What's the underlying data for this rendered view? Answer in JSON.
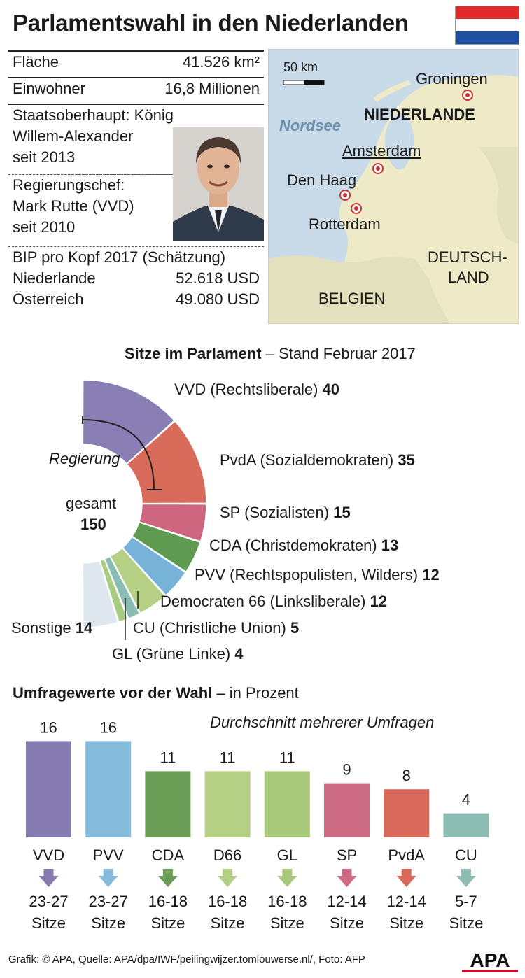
{
  "title": "Parlamentswahl in den Niederlanden",
  "flag_colors": [
    "#e22a2a",
    "#ffffff",
    "#1e4fa0"
  ],
  "facts": {
    "flaeche_label": "Fläche",
    "flaeche_value": "41.526 km²",
    "einwohner_label": "Einwohner",
    "einwohner_value": "16,8 Millionen",
    "staatsoberhaupt_1": "Staatsoberhaupt: König",
    "staatsoberhaupt_2": "Willem-Alexander",
    "staatsoberhaupt_3": "seit 2013",
    "regierungschef_1": "Regierungschef:",
    "regierungschef_2": "Mark Rutte (VVD)",
    "regierungschef_3": "seit 2010",
    "bip_label": "BIP pro Kopf 2017 (Schätzung)",
    "nl_label": "Niederlande",
    "nl_value": "52.618 USD",
    "at_label": "Österreich",
    "at_value": "49.080 USD"
  },
  "map": {
    "scale": "50 km",
    "sea": "Nordsee",
    "country": "NIEDERLANDE",
    "groningen": "Groningen",
    "amsterdam": "Amsterdam",
    "denhaag": "Den Haag",
    "rotterdam": "Rotterdam",
    "deutsch1": "DEUTSCH-",
    "deutsch2": "LAND",
    "belgien": "BELGIEN"
  },
  "seats": {
    "title_bold": "Sitze im Parlament",
    "title_rest": " – Stand Februar 2017",
    "regierung": "Regierung",
    "gesamt": "gesamt",
    "total": "150"
  },
  "poll": {
    "title_bold": "Umfragewerte vor der Wahl",
    "title_rest": " – in Prozent",
    "subtitle": "Durchschnitt mehrerer Umfragen"
  },
  "footer": "Grafik: © APA, Quelle: APA/dpa/IWF/peilingwijzer.tomlouwerse.nl/, Foto: AFP",
  "logo": "APA",
  "chart_data": [
    {
      "type": "pie",
      "title": "Sitze im Parlament – Stand Februar 2017",
      "categories": [
        "VVD (Rechtsliberale)",
        "PvdA (Sozialdemokraten)",
        "SP (Sozialisten)",
        "CDA (Christdemokraten)",
        "PVV (Rechtspopulisten, Wilders)",
        "Democraten 66 (Linksliberale)",
        "CU (Christliche Union)",
        "GL (Grüne Linke)",
        "Sonstige"
      ],
      "values": [
        40,
        35,
        15,
        13,
        12,
        12,
        5,
        4,
        14
      ],
      "colors": [
        "#8a7fb4",
        "#d96b5a",
        "#cf6680",
        "#5e9a50",
        "#77b3d8",
        "#b5cf84",
        "#89bcb2",
        "#a8cd80",
        "#dfe7ef"
      ],
      "total": 150
    },
    {
      "type": "bar",
      "title": "Umfragewerte vor der Wahl – in Prozent",
      "categories": [
        "VVD",
        "PVV",
        "CDA",
        "D66",
        "GL",
        "SP",
        "PvdA",
        "CU"
      ],
      "values": [
        16,
        16,
        11,
        11,
        11,
        9,
        8,
        4
      ],
      "value_labels": [
        "16",
        "16",
        "11",
        "11",
        "11",
        "9",
        "8",
        "4"
      ],
      "seats_1": [
        "23-27",
        "23-27",
        "16-18",
        "16-18",
        "16-18",
        "12-14",
        "12-14",
        "5-7"
      ],
      "seats_2": [
        "Sitze",
        "Sitze",
        "Sitze",
        "Sitze",
        "Sitze",
        "Sitze",
        "Sitze",
        "Sitze"
      ],
      "colors": [
        "#857bb0",
        "#85bcdc",
        "#6a9d55",
        "#b5cf84",
        "#a8c97c",
        "#cc6b83",
        "#d9695a",
        "#8cbcb2"
      ]
    }
  ]
}
